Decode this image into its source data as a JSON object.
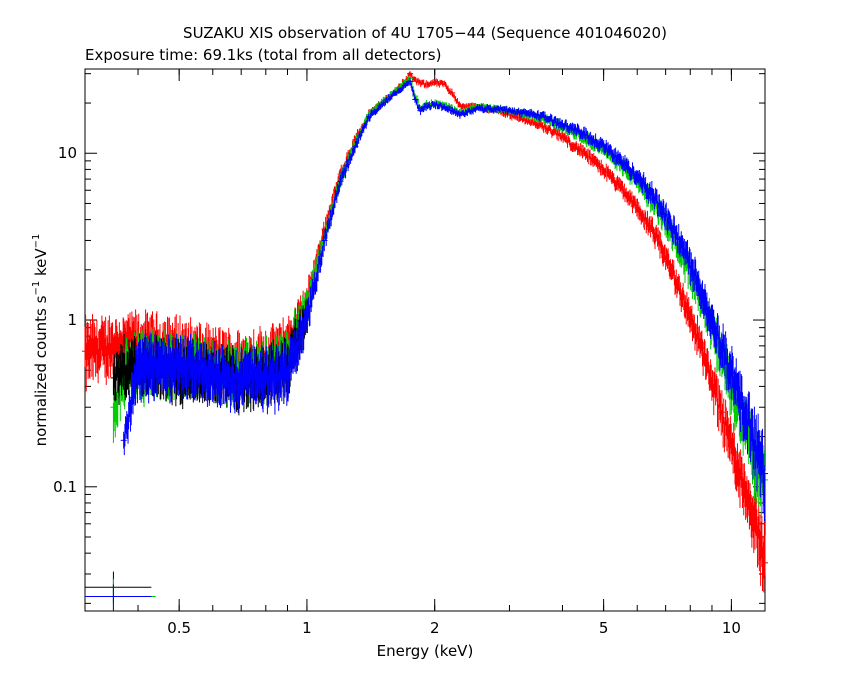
{
  "chart_data": {
    "type": "scatter",
    "title": "SUZAKU XIS observation of 4U 1705−44 (Sequence 401046020)",
    "subtitle": "Exposure time: 69.1ks (total from all detectors)",
    "xlabel": "Energy (keV)",
    "ylabel_main": "normalized counts s",
    "ylabel_sup1": "−1",
    "ylabel_mid": " keV",
    "ylabel_sup2": "−1",
    "x_scale": "log",
    "y_scale": "log",
    "xlim": [
      0.3,
      12.0
    ],
    "ylim": [
      0.018,
      32
    ],
    "grid": false,
    "x_ticks": [
      {
        "value": 0.5,
        "label": "0.5"
      },
      {
        "value": 1,
        "label": "1"
      },
      {
        "value": 2,
        "label": "2"
      },
      {
        "value": 5,
        "label": "5"
      },
      {
        "value": 10,
        "label": "10"
      }
    ],
    "y_ticks": [
      {
        "value": 0.1,
        "label": "0.1"
      },
      {
        "value": 1,
        "label": "1"
      },
      {
        "value": 10,
        "label": "10"
      }
    ],
    "series": [
      {
        "color": "#ff0000",
        "x": [
          0.3,
          0.35,
          0.4,
          0.5,
          0.6,
          0.7,
          0.8,
          0.9,
          1.0,
          1.1,
          1.2,
          1.3,
          1.4,
          1.5,
          1.6,
          1.7,
          1.75,
          1.8,
          1.9,
          2.0,
          2.1,
          2.2,
          2.3,
          2.5,
          2.8,
          3.0,
          3.5,
          4.0,
          4.5,
          5.0,
          5.5,
          6.0,
          6.5,
          7.0,
          7.5,
          8.0,
          8.5,
          9.0,
          9.5,
          10.0,
          10.5,
          11.0,
          11.5,
          12.0
        ],
        "y": [
          0.65,
          0.72,
          0.75,
          0.7,
          0.6,
          0.58,
          0.6,
          0.7,
          1.3,
          3.5,
          7.5,
          12.0,
          17.0,
          20.0,
          23.0,
          27.0,
          30.0,
          27.0,
          26.0,
          26.5,
          26.0,
          23.0,
          19.0,
          19.0,
          18.0,
          17.0,
          15.0,
          12.5,
          10.0,
          8.0,
          6.2,
          4.7,
          3.5,
          2.4,
          1.6,
          1.05,
          0.68,
          0.43,
          0.28,
          0.18,
          0.12,
          0.085,
          0.06,
          0.035
        ],
        "error_frac": [
          0.35,
          0.3,
          0.3,
          0.3,
          0.3,
          0.3,
          0.3,
          0.3,
          0.18,
          0.1,
          0.08,
          0.06,
          0.05,
          0.04,
          0.04,
          0.04,
          0.04,
          0.04,
          0.04,
          0.04,
          0.04,
          0.04,
          0.04,
          0.04,
          0.04,
          0.04,
          0.05,
          0.06,
          0.07,
          0.08,
          0.09,
          0.1,
          0.12,
          0.14,
          0.16,
          0.18,
          0.2,
          0.22,
          0.25,
          0.28,
          0.3,
          0.32,
          0.35,
          0.4
        ]
      },
      {
        "color": "#00cc00",
        "x": [
          0.35,
          0.37,
          0.4,
          0.5,
          0.6,
          0.7,
          0.8,
          0.9,
          1.0,
          1.1,
          1.2,
          1.3,
          1.4,
          1.5,
          1.6,
          1.7,
          1.75,
          1.8,
          1.85,
          1.9,
          2.0,
          2.1,
          2.2,
          2.3,
          2.5,
          2.8,
          3.0,
          3.5,
          4.0,
          4.5,
          5.0,
          5.5,
          6.0,
          6.5,
          7.0,
          7.5,
          8.0,
          8.5,
          9.0,
          9.5,
          10.0,
          10.5,
          11.0,
          11.5,
          12.0
        ],
        "y": [
          0.3,
          0.48,
          0.55,
          0.55,
          0.5,
          0.5,
          0.52,
          0.6,
          1.2,
          3.2,
          7.0,
          11.5,
          17.0,
          20.0,
          23.0,
          26.0,
          28.0,
          22.0,
          18.5,
          19.5,
          20.0,
          19.5,
          18.5,
          17.5,
          19.0,
          18.5,
          18.0,
          16.5,
          14.5,
          12.5,
          10.5,
          8.5,
          6.8,
          5.2,
          3.9,
          2.8,
          1.9,
          1.3,
          0.88,
          0.6,
          0.4,
          0.28,
          0.2,
          0.14,
          0.11
        ],
        "error_frac": [
          0.3,
          0.3,
          0.35,
          0.3,
          0.3,
          0.3,
          0.3,
          0.3,
          0.18,
          0.1,
          0.08,
          0.06,
          0.05,
          0.04,
          0.04,
          0.04,
          0.04,
          0.04,
          0.04,
          0.04,
          0.04,
          0.04,
          0.04,
          0.04,
          0.04,
          0.04,
          0.04,
          0.05,
          0.06,
          0.07,
          0.08,
          0.09,
          0.1,
          0.12,
          0.14,
          0.16,
          0.18,
          0.2,
          0.22,
          0.25,
          0.28,
          0.3,
          0.32,
          0.35,
          0.4
        ]
      },
      {
        "color": "#000000",
        "x": [
          0.35,
          0.37,
          0.4,
          0.5,
          0.6,
          0.7,
          0.8,
          0.9,
          1.0
        ],
        "y": [
          0.45,
          0.52,
          0.55,
          0.5,
          0.48,
          0.45,
          0.48,
          0.55,
          1.1
        ],
        "error_frac": [
          0.25,
          0.3,
          0.3,
          0.3,
          0.3,
          0.3,
          0.3,
          0.3,
          0.2
        ]
      },
      {
        "color": "#0000ff",
        "x": [
          0.37,
          0.4,
          0.5,
          0.6,
          0.7,
          0.8,
          0.9,
          1.0,
          1.1,
          1.2,
          1.3,
          1.4,
          1.5,
          1.6,
          1.7,
          1.75,
          1.8,
          1.85,
          1.9,
          2.0,
          2.1,
          2.2,
          2.3,
          2.5,
          2.8,
          3.0,
          3.5,
          4.0,
          4.5,
          5.0,
          5.5,
          6.0,
          6.5,
          7.0,
          7.5,
          8.0,
          8.5,
          9.0,
          9.5,
          10.0,
          10.5,
          11.0,
          11.5,
          12.0
        ],
        "y": [
          0.19,
          0.55,
          0.55,
          0.48,
          0.45,
          0.45,
          0.5,
          1.0,
          3.0,
          6.8,
          11.0,
          16.5,
          19.5,
          22.5,
          25.5,
          27.0,
          21.0,
          18.0,
          19.0,
          19.5,
          19.0,
          18.0,
          17.0,
          18.5,
          18.5,
          18.0,
          17.0,
          15.0,
          13.0,
          11.0,
          9.0,
          7.3,
          5.7,
          4.3,
          3.1,
          2.2,
          1.5,
          1.0,
          0.7,
          0.48,
          0.33,
          0.24,
          0.17,
          0.12
        ],
        "error_frac": [
          0.15,
          0.35,
          0.3,
          0.3,
          0.3,
          0.3,
          0.3,
          0.18,
          0.1,
          0.08,
          0.06,
          0.05,
          0.04,
          0.04,
          0.04,
          0.04,
          0.04,
          0.04,
          0.04,
          0.04,
          0.04,
          0.04,
          0.04,
          0.04,
          0.04,
          0.04,
          0.05,
          0.06,
          0.07,
          0.08,
          0.09,
          0.1,
          0.12,
          0.14,
          0.16,
          0.18,
          0.2,
          0.22,
          0.25,
          0.28,
          0.3,
          0.32,
          0.35,
          0.4
        ]
      }
    ],
    "corner_marks": [
      {
        "color": "#000000",
        "x": 0.35,
        "y": 0.025,
        "xerr": [
          0.3,
          0.43
        ],
        "yerr": [
          0.02,
          0.031
        ]
      },
      {
        "color": "#00cc00",
        "x": 0.35,
        "y": 0.022,
        "xerr": [
          0.3,
          0.44
        ],
        "yerr": [
          0.018,
          0.028
        ]
      },
      {
        "color": "#0000ff",
        "x": 0.35,
        "y": 0.022,
        "xerr": [
          0.3,
          0.43
        ],
        "yerr": [
          0.018,
          0.026
        ]
      }
    ]
  }
}
